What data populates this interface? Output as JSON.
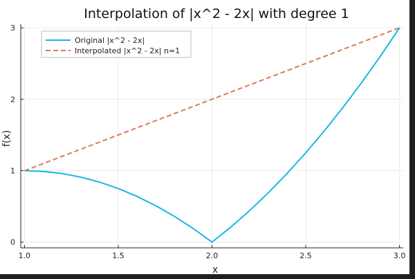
{
  "chart_data": {
    "type": "line",
    "title": "Interpolation of |x^2 - 2x| with degree 1",
    "xlabel": "x",
    "ylabel": "f(x)",
    "xlim": [
      0.98,
      3.02
    ],
    "ylim": [
      -0.08,
      3.05
    ],
    "xticks": [
      1.0,
      1.5,
      2.0,
      2.5,
      3.0
    ],
    "xtick_labels": [
      "1.0",
      "1.5",
      "2.0",
      "2.5",
      "3.0"
    ],
    "yticks": [
      0,
      1,
      2,
      3
    ],
    "ytick_labels": [
      "0",
      "1",
      "2",
      "3"
    ],
    "grid": true,
    "legend_position": "top-left",
    "series": [
      {
        "name": "Original |x^2 - 2x|",
        "color": "#1ab6e6",
        "style": "solid",
        "x": [
          1.0,
          1.1,
          1.2,
          1.3,
          1.4,
          1.5,
          1.6,
          1.7,
          1.8,
          1.9,
          2.0,
          2.1,
          2.2,
          2.3,
          2.4,
          2.5,
          2.6,
          2.7,
          2.8,
          2.9,
          3.0
        ],
        "y": [
          1.0,
          0.99,
          0.96,
          0.91,
          0.84,
          0.75,
          0.64,
          0.51,
          0.36,
          0.19,
          0.0,
          0.21,
          0.44,
          0.69,
          0.96,
          1.25,
          1.56,
          1.89,
          2.24,
          2.61,
          3.0
        ]
      },
      {
        "name": "Interpolated |x^2 - 2x| n=1",
        "color": "#dc7a52",
        "style": "dashed",
        "x": [
          1.0,
          3.0
        ],
        "y": [
          1.0,
          3.0
        ]
      }
    ]
  }
}
